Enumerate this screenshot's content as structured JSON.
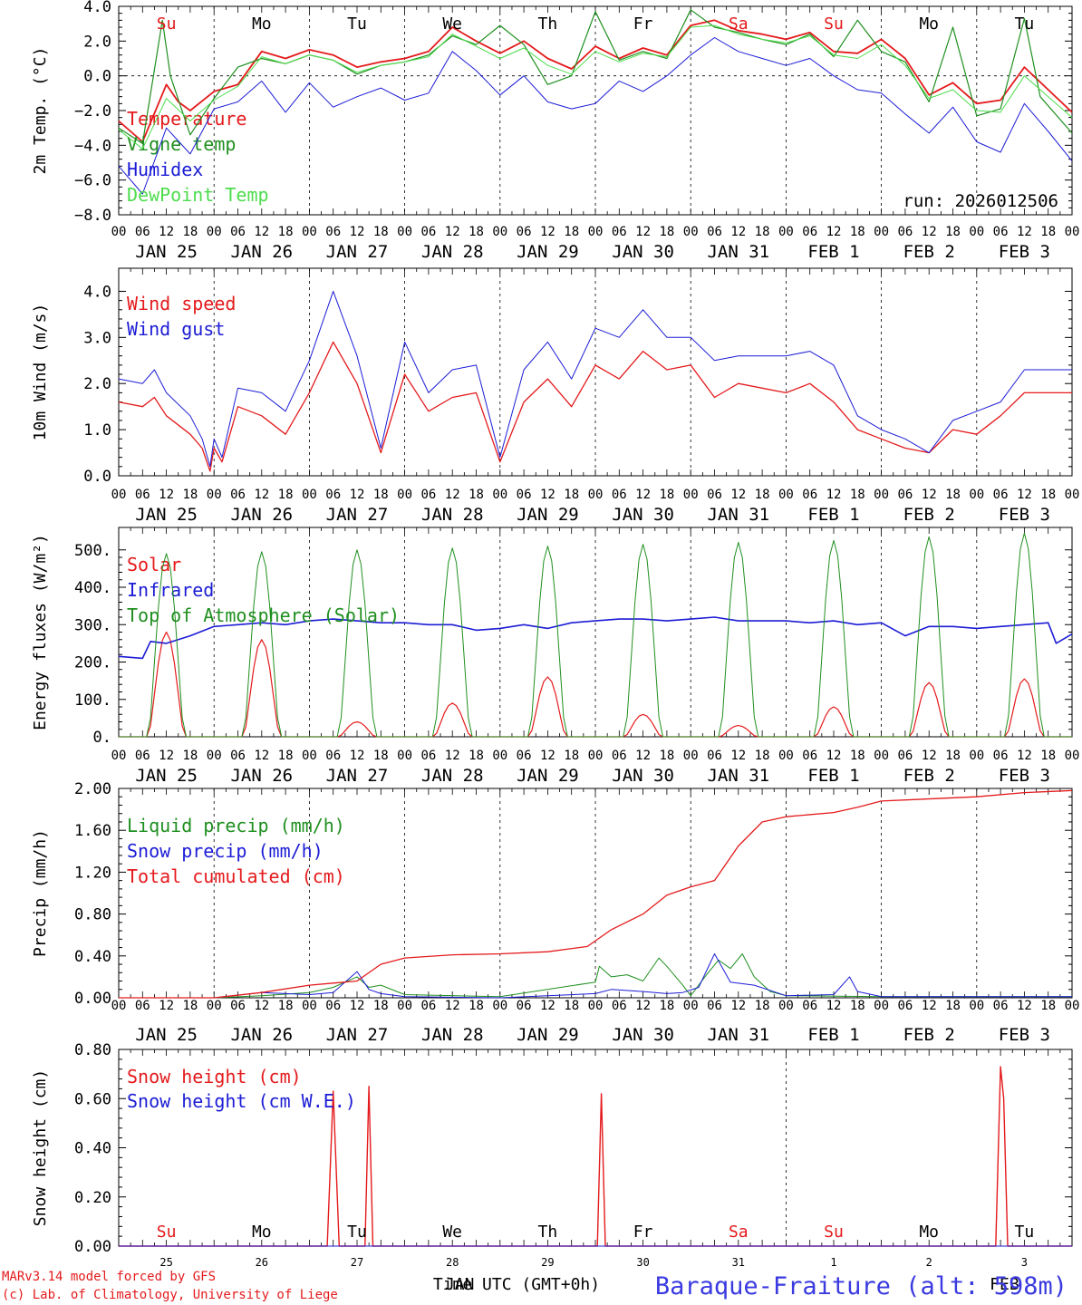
{
  "colors": {
    "red": "#e41a1c",
    "green": "#1f8f1f",
    "blue": "#1c1cd6",
    "lightgreen": "#4ddc4d",
    "axis": "#000000",
    "site": "#3a3ae0"
  },
  "common": {
    "hour_ticks": [
      "00",
      "06",
      "12",
      "18",
      "00",
      "06",
      "12",
      "18",
      "00",
      "06",
      "12",
      "18",
      "00",
      "06",
      "12",
      "18",
      "00",
      "06",
      "12",
      "18",
      "00",
      "06",
      "12",
      "18",
      "00",
      "06",
      "12",
      "18",
      "00",
      "06",
      "12",
      "18",
      "00",
      "06",
      "12",
      "18",
      "00",
      "06",
      "12",
      "18",
      "00"
    ],
    "date_labels": [
      "JAN 25",
      "JAN 26",
      "JAN 27",
      "JAN 28",
      "JAN 29",
      "JAN 30",
      "JAN 31",
      "FEB  1",
      "FEB  2",
      "FEB  3"
    ],
    "weekdays": [
      "Su",
      "Mo",
      "Tu",
      "We",
      "Th",
      "Fr",
      "Sa",
      "Su",
      "Mo",
      "Tu"
    ],
    "weekday_colors": [
      "red",
      "black",
      "black",
      "black",
      "black",
      "black",
      "red",
      "red",
      "black",
      "black"
    ],
    "day_numbers": [
      "25",
      "26",
      "27",
      "28",
      "29",
      "30",
      "31",
      "1",
      "2",
      "3"
    ],
    "month_labels": [
      "JAN",
      "FEB"
    ]
  },
  "footer": {
    "credit_line1": "MARv3.14 model forced by GFS",
    "credit_line2": "(c) Lab. of Climatology, University of Liege",
    "time_label": "Time UTC (GMT+0h)",
    "site": "Baraque-Fraiture (alt: 598m)"
  },
  "chart_data": [
    {
      "type": "line",
      "id": "temp",
      "ylabel": "2m Temp. (°C)",
      "ylim": [
        -8,
        4
      ],
      "yticks": [
        "4.0",
        "2.0",
        "0.0",
        "−2.0",
        "−4.0",
        "−6.0",
        "−8.0"
      ],
      "run_label": "run: 2026012506",
      "x_range_hours": [
        0,
        240
      ],
      "zero_line": true,
      "series": [
        {
          "name": "Temperature",
          "color": "red",
          "width": 1.8,
          "x": [
            0,
            6,
            12,
            15,
            18,
            24,
            30,
            36,
            42,
            48,
            54,
            60,
            66,
            72,
            78,
            84,
            90,
            96,
            102,
            108,
            114,
            120,
            126,
            132,
            138,
            144,
            150,
            156,
            162,
            168,
            174,
            180,
            186,
            192,
            198,
            204,
            210,
            216,
            222,
            228,
            234,
            240
          ],
          "y": [
            -2.6,
            -3.8,
            -0.5,
            -1.5,
            -2.0,
            -0.9,
            -0.5,
            1.4,
            1.0,
            1.5,
            1.2,
            0.5,
            0.8,
            1.0,
            1.4,
            2.8,
            2.0,
            1.3,
            2.0,
            1.0,
            0.4,
            1.7,
            1.0,
            1.6,
            1.2,
            2.9,
            3.2,
            2.6,
            2.4,
            2.1,
            2.5,
            1.4,
            1.3,
            2.1,
            1.0,
            -1.1,
            -0.4,
            -1.6,
            -1.4,
            0.5,
            -0.8,
            -2.1
          ]
        },
        {
          "name": "Vigne temp",
          "color": "green",
          "width": 1.2,
          "x": [
            0,
            6,
            11,
            13,
            18,
            24,
            30,
            36,
            42,
            48,
            54,
            60,
            66,
            72,
            78,
            84,
            90,
            96,
            102,
            108,
            114,
            120,
            126,
            132,
            138,
            144,
            150,
            156,
            162,
            168,
            174,
            180,
            186,
            192,
            198,
            204,
            210,
            216,
            222,
            228,
            232,
            240
          ],
          "y": [
            -3.0,
            -3.9,
            3.2,
            0.0,
            -3.4,
            -1.3,
            0.5,
            1.0,
            0.7,
            1.2,
            0.9,
            0.1,
            0.6,
            0.8,
            1.2,
            2.3,
            1.8,
            2.9,
            1.8,
            -0.5,
            0.0,
            3.7,
            0.9,
            1.4,
            1.0,
            3.8,
            2.8,
            2.5,
            2.1,
            1.8,
            2.4,
            1.1,
            3.2,
            1.4,
            0.8,
            -1.5,
            2.8,
            -2.3,
            -1.9,
            3.3,
            -1.2,
            -3.3
          ]
        },
        {
          "name": "Humidex",
          "color": "blue",
          "width": 1.0,
          "x": [
            0,
            6,
            12,
            18,
            24,
            30,
            36,
            42,
            48,
            54,
            60,
            66,
            72,
            78,
            84,
            90,
            96,
            102,
            108,
            114,
            120,
            126,
            132,
            138,
            144,
            150,
            156,
            162,
            168,
            174,
            180,
            186,
            192,
            198,
            204,
            210,
            216,
            222,
            228,
            234,
            240
          ],
          "y": [
            -5.2,
            -6.8,
            -3.0,
            -4.5,
            -1.9,
            -1.5,
            -0.3,
            -2.1,
            -0.4,
            -1.8,
            -1.2,
            -0.7,
            -1.4,
            -1.0,
            1.4,
            0.3,
            -1.1,
            0.0,
            -1.5,
            -1.9,
            -1.6,
            -0.3,
            -0.9,
            0.0,
            1.2,
            2.2,
            1.4,
            1.0,
            0.6,
            1.0,
            0.0,
            -0.8,
            -1.0,
            -2.2,
            -3.3,
            -1.8,
            -3.8,
            -4.4,
            -1.6,
            -3.2,
            -4.9
          ]
        },
        {
          "name": "DewPoint Temp",
          "color": "lightgreen",
          "width": 1.0,
          "x": [
            0,
            6,
            12,
            18,
            24,
            30,
            36,
            42,
            48,
            54,
            60,
            66,
            72,
            78,
            84,
            90,
            96,
            102,
            108,
            114,
            120,
            126,
            132,
            138,
            144,
            150,
            156,
            162,
            168,
            174,
            180,
            186,
            192,
            198,
            204,
            210,
            216,
            222,
            228,
            234,
            240
          ],
          "y": [
            -3.1,
            -4.2,
            -1.3,
            -2.6,
            -1.4,
            -0.6,
            1.1,
            0.7,
            1.2,
            0.9,
            0.2,
            0.6,
            0.8,
            1.1,
            2.4,
            1.7,
            1.0,
            1.6,
            0.6,
            0.1,
            1.4,
            0.8,
            1.3,
            1.1,
            2.8,
            2.9,
            2.4,
            2.1,
            1.9,
            2.3,
            1.2,
            1.0,
            1.8,
            0.6,
            -1.3,
            -0.8,
            -2.0,
            -2.1,
            0.0,
            -1.2,
            -2.4
          ]
        }
      ]
    },
    {
      "type": "line",
      "id": "wind",
      "ylabel": "10m Wind (m/s)",
      "ylim": [
        0,
        4.5
      ],
      "yticks": [
        "4.0",
        "3.0",
        "2.0",
        "1.0",
        "0.0"
      ],
      "x_range_hours": [
        0,
        240
      ],
      "series": [
        {
          "name": "Wind speed",
          "color": "red",
          "width": 1.3,
          "x": [
            0,
            6,
            9,
            12,
            18,
            21,
            23,
            24,
            26,
            30,
            36,
            42,
            48,
            54,
            60,
            66,
            72,
            78,
            84,
            90,
            96,
            102,
            108,
            114,
            120,
            126,
            132,
            138,
            144,
            150,
            156,
            162,
            168,
            174,
            180,
            186,
            192,
            198,
            204,
            210,
            216,
            222,
            228,
            234,
            240
          ],
          "y": [
            1.6,
            1.5,
            1.7,
            1.3,
            0.9,
            0.6,
            0.1,
            0.6,
            0.3,
            1.5,
            1.3,
            0.9,
            1.8,
            2.9,
            2.0,
            0.5,
            2.2,
            1.4,
            1.7,
            1.8,
            0.3,
            1.6,
            2.1,
            1.5,
            2.4,
            2.1,
            2.7,
            2.3,
            2.4,
            1.7,
            2.0,
            1.9,
            1.8,
            2.0,
            1.6,
            1.0,
            0.8,
            0.6,
            0.5,
            1.0,
            0.9,
            1.3,
            1.8,
            1.8,
            1.8
          ]
        },
        {
          "name": "Wind gust",
          "color": "blue",
          "width": 1.0,
          "x": [
            0,
            6,
            9,
            12,
            18,
            21,
            23,
            24,
            26,
            30,
            36,
            42,
            48,
            54,
            60,
            66,
            72,
            78,
            84,
            90,
            96,
            102,
            108,
            114,
            120,
            126,
            132,
            138,
            144,
            150,
            156,
            162,
            168,
            174,
            180,
            186,
            192,
            198,
            204,
            210,
            216,
            222,
            228,
            234,
            240
          ],
          "y": [
            2.1,
            2.0,
            2.3,
            1.8,
            1.3,
            0.8,
            0.2,
            0.8,
            0.4,
            1.9,
            1.8,
            1.4,
            2.5,
            4.0,
            2.6,
            0.6,
            2.9,
            1.8,
            2.3,
            2.4,
            0.4,
            2.3,
            2.9,
            2.1,
            3.2,
            3.0,
            3.6,
            3.0,
            3.0,
            2.5,
            2.6,
            2.6,
            2.6,
            2.7,
            2.4,
            1.3,
            1.0,
            0.8,
            0.5,
            1.2,
            1.4,
            1.6,
            2.3,
            2.3,
            2.3
          ]
        }
      ]
    },
    {
      "type": "line",
      "id": "energy",
      "ylabel": "Energy fluxes (W/m²)",
      "ylim": [
        0,
        560
      ],
      "yticks": [
        "500.",
        "400.",
        "300.",
        "200.",
        "100.",
        "0."
      ],
      "x_range_hours": [
        0,
        240
      ],
      "series": [
        {
          "name": "Solar",
          "color": "red",
          "width": 1.2,
          "day_peaks": [
            280,
            260,
            40,
            90,
            160,
            60,
            30,
            80,
            145,
            155
          ]
        },
        {
          "name": "Infrared",
          "color": "blue",
          "width": 1.6,
          "x": [
            0,
            6,
            8,
            12,
            18,
            24,
            30,
            36,
            42,
            48,
            54,
            60,
            66,
            72,
            78,
            84,
            90,
            96,
            102,
            108,
            114,
            120,
            126,
            132,
            138,
            144,
            150,
            156,
            162,
            168,
            174,
            180,
            186,
            192,
            198,
            204,
            210,
            216,
            222,
            228,
            234,
            236,
            240
          ],
          "y": [
            215,
            210,
            255,
            250,
            270,
            295,
            300,
            305,
            300,
            310,
            315,
            310,
            305,
            305,
            300,
            300,
            285,
            290,
            300,
            290,
            305,
            310,
            315,
            315,
            310,
            315,
            320,
            310,
            310,
            310,
            305,
            310,
            300,
            305,
            270,
            295,
            295,
            290,
            295,
            300,
            305,
            250,
            275
          ]
        },
        {
          "name": "Top of Atmosphere (Solar)",
          "color": "green",
          "width": 1.0,
          "day_peaks": [
            490,
            495,
            500,
            505,
            510,
            515,
            520,
            525,
            535,
            545
          ]
        }
      ]
    },
    {
      "type": "line",
      "id": "precip",
      "ylabel": "Precip (mm/h)",
      "ylim": [
        0,
        2.0
      ],
      "yticks": [
        "2.00",
        "1.60",
        "1.20",
        "0.80",
        "0.40",
        "0.00"
      ],
      "x_range_hours": [
        0,
        240
      ],
      "series": [
        {
          "name": "Liquid precip (mm/h)",
          "color": "green",
          "width": 1.0,
          "x": [
            0,
            24,
            36,
            48,
            54,
            60,
            63,
            66,
            72,
            96,
            120,
            121,
            124,
            128,
            132,
            136,
            138,
            142,
            144,
            148,
            151,
            154,
            157,
            160,
            164,
            168,
            192,
            216,
            240
          ],
          "y": [
            0,
            0,
            0.02,
            0.05,
            0.1,
            0.2,
            0.1,
            0.12,
            0.03,
            0.01,
            0.15,
            0.3,
            0.2,
            0.22,
            0.16,
            0.38,
            0.3,
            0.12,
            0.02,
            0.22,
            0.36,
            0.28,
            0.42,
            0.2,
            0.06,
            0.02,
            0.01,
            0.01,
            0.01
          ]
        },
        {
          "name": "Snow precip (mm/h)",
          "color": "blue",
          "width": 1.0,
          "x": [
            0,
            24,
            36,
            48,
            54,
            60,
            63,
            66,
            72,
            96,
            120,
            124,
            132,
            138,
            142,
            146,
            150,
            154,
            160,
            168,
            180,
            184,
            186,
            192,
            216,
            240
          ],
          "y": [
            0,
            0,
            0.05,
            0.03,
            0.05,
            0.25,
            0.08,
            0.04,
            0.01,
            0.0,
            0.04,
            0.08,
            0.06,
            0.04,
            0.05,
            0.1,
            0.42,
            0.15,
            0.12,
            0.02,
            0.03,
            0.2,
            0.06,
            0.01,
            0.01,
            0.01
          ]
        },
        {
          "name": "Total cumulated (cm)",
          "color": "red",
          "width": 1.3,
          "x": [
            0,
            24,
            36,
            48,
            54,
            60,
            66,
            72,
            84,
            96,
            108,
            118,
            124,
            132,
            138,
            144,
            150,
            156,
            162,
            168,
            180,
            186,
            192,
            216,
            228,
            240
          ],
          "y": [
            0,
            0.0,
            0.05,
            0.12,
            0.14,
            0.16,
            0.32,
            0.38,
            0.41,
            0.42,
            0.44,
            0.49,
            0.65,
            0.8,
            0.98,
            1.06,
            1.12,
            1.45,
            1.68,
            1.73,
            1.77,
            1.82,
            1.88,
            1.92,
            1.96,
            1.98
          ]
        }
      ]
    },
    {
      "type": "line",
      "id": "snow",
      "ylabel": "Snow height (cm)",
      "ylim": [
        0,
        0.8
      ],
      "yticks": [
        "0.80",
        "0.60",
        "0.40",
        "0.20",
        "0.00"
      ],
      "x_range_hours": [
        0,
        240
      ],
      "series": [
        {
          "name": "Snow height (cm)",
          "color": "red",
          "width": 1.4,
          "x": [
            0,
            52.5,
            54,
            55.5,
            62,
            63,
            64,
            120.5,
            121.5,
            122.5,
            220.8,
            222,
            222.8,
            223.8,
            240
          ],
          "y": [
            0,
            0,
            0.63,
            0,
            0,
            0.65,
            0,
            0,
            0.62,
            0,
            0,
            0.73,
            0.6,
            0,
            0
          ]
        },
        {
          "name": "Snow height (cm W.E.)",
          "color": "blue",
          "width": 1.0,
          "x": [
            0,
            240
          ],
          "y": [
            0,
            0
          ]
        }
      ]
    }
  ]
}
